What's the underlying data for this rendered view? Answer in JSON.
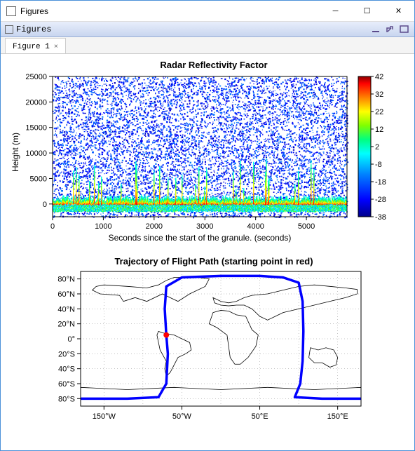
{
  "window": {
    "title": "Figures",
    "toolbar_label": "Figures"
  },
  "tabs": {
    "active": {
      "label": "Figure 1",
      "close": "×"
    }
  },
  "controls": {
    "min": "─",
    "max": "☐",
    "close": "✕"
  },
  "toolbar_icons": {
    "a": "minimize-panel-icon",
    "b": "dock-icon",
    "c": "maximize-panel-icon"
  },
  "chart1": {
    "title": "Radar Reflectivity Factor",
    "ylabel": "Height (m)",
    "xlabel": "Seconds since the start of the granule. (seconds)",
    "yticks": [
      0,
      5000,
      10000,
      15000,
      20000,
      25000
    ],
    "ytick_labels": [
      "0",
      "5000",
      "10000",
      "15000",
      "20000",
      "25000"
    ],
    "xticks": [
      0,
      1000,
      2000,
      3000,
      4000,
      5000
    ],
    "xtick_labels": [
      "0",
      "1000",
      "2000",
      "3000",
      "4000",
      "5000"
    ],
    "xlim": [
      0,
      5800
    ],
    "ylim": [
      -2500,
      25000
    ],
    "colorbar": {
      "ticks": [
        -38,
        -28,
        -18,
        -8,
        2,
        12,
        22,
        32,
        42
      ],
      "tick_labels": [
        "-38",
        "-28",
        "-18",
        "-8",
        "2",
        "12",
        "22",
        "32",
        "42"
      ],
      "stops": [
        {
          "p": 0.0,
          "c": "#00008b"
        },
        {
          "p": 0.12,
          "c": "#0000ff"
        },
        {
          "p": 0.3,
          "c": "#0080ff"
        },
        {
          "p": 0.45,
          "c": "#00ffff"
        },
        {
          "p": 0.55,
          "c": "#00ff80"
        },
        {
          "p": 0.65,
          "c": "#80ff00"
        },
        {
          "p": 0.75,
          "c": "#ffff00"
        },
        {
          "p": 0.85,
          "c": "#ff8000"
        },
        {
          "p": 0.95,
          "c": "#ff0000"
        },
        {
          "p": 1.0,
          "c": "#8b0000"
        }
      ]
    },
    "noise_seed": 42,
    "noise_density": 0.65,
    "signal_band_y": 0,
    "signal_band_half": 2000
  },
  "chart2": {
    "title": "Trajectory of Flight Path (starting point in red)",
    "yticks": [
      -80,
      -60,
      -40,
      -20,
      0,
      20,
      40,
      60,
      80
    ],
    "ytick_labels": [
      "80°S",
      "60°S",
      "40°S",
      "20°S",
      "0°",
      "20°N",
      "40°N",
      "60°N",
      "80°N"
    ],
    "xticks": [
      -150,
      -50,
      50,
      150
    ],
    "xtick_labels": [
      "150°W",
      "50°W",
      "50°E",
      "150°E"
    ],
    "xlim": [
      -180,
      180
    ],
    "ylim": [
      -90,
      90
    ],
    "box_color": "#000000",
    "coast_color": "#000000",
    "trajectory_color": "#0000ff",
    "trajectory_width": 3.5,
    "start_point": {
      "lon": -70,
      "lat": 5,
      "color": "#ff0000",
      "r": 4
    },
    "trajectory_path": [
      [
        -180,
        -80
      ],
      [
        -120,
        -80
      ],
      [
        -80,
        -78
      ],
      [
        -70,
        -60
      ],
      [
        -68,
        -20
      ],
      [
        -70,
        5
      ],
      [
        -72,
        40
      ],
      [
        -70,
        70
      ],
      [
        -50,
        82
      ],
      [
        0,
        84
      ],
      [
        50,
        84
      ],
      [
        80,
        82
      ],
      [
        100,
        75
      ],
      [
        105,
        50
      ],
      [
        106,
        10
      ],
      [
        105,
        -30
      ],
      [
        102,
        -60
      ],
      [
        95,
        -78
      ],
      [
        130,
        -80
      ],
      [
        180,
        -80
      ]
    ],
    "continents": [
      [
        [
          -160,
          70
        ],
        [
          -150,
          72
        ],
        [
          -120,
          70
        ],
        [
          -95,
          68
        ],
        [
          -80,
          72
        ],
        [
          -70,
          78
        ],
        [
          -60,
          82
        ],
        [
          -30,
          82
        ],
        [
          -15,
          80
        ],
        [
          -20,
          70
        ],
        [
          -40,
          60
        ],
        [
          -55,
          50
        ],
        [
          -65,
          55
        ],
        [
          -75,
          60
        ],
        [
          -95,
          50
        ],
        [
          -110,
          55
        ],
        [
          -125,
          50
        ],
        [
          -130,
          58
        ],
        [
          -155,
          60
        ],
        [
          -165,
          65
        ],
        [
          -160,
          70
        ]
      ],
      [
        [
          -80,
          10
        ],
        [
          -75,
          8
        ],
        [
          -60,
          5
        ],
        [
          -50,
          0
        ],
        [
          -40,
          -5
        ],
        [
          -38,
          -15
        ],
        [
          -45,
          -20
        ],
        [
          -55,
          -25
        ],
        [
          -60,
          -35
        ],
        [
          -65,
          -45
        ],
        [
          -70,
          -50
        ],
        [
          -72,
          -40
        ],
        [
          -70,
          -30
        ],
        [
          -78,
          -15
        ],
        [
          -80,
          -5
        ],
        [
          -82,
          5
        ],
        [
          -80,
          10
        ]
      ],
      [
        [
          -10,
          35
        ],
        [
          0,
          38
        ],
        [
          10,
          37
        ],
        [
          20,
          32
        ],
        [
          32,
          30
        ],
        [
          40,
          12
        ],
        [
          48,
          5
        ],
        [
          45,
          -10
        ],
        [
          35,
          -25
        ],
        [
          25,
          -34
        ],
        [
          18,
          -34
        ],
        [
          12,
          -25
        ],
        [
          10,
          -10
        ],
        [
          8,
          5
        ],
        [
          -5,
          15
        ],
        [
          -15,
          20
        ],
        [
          -10,
          35
        ]
      ],
      [
        [
          -10,
          55
        ],
        [
          0,
          50
        ],
        [
          10,
          48
        ],
        [
          20,
          50
        ],
        [
          30,
          55
        ],
        [
          40,
          58
        ],
        [
          60,
          60
        ],
        [
          80,
          65
        ],
        [
          100,
          70
        ],
        [
          120,
          72
        ],
        [
          140,
          70
        ],
        [
          160,
          68
        ],
        [
          175,
          66
        ],
        [
          175,
          60
        ],
        [
          160,
          55
        ],
        [
          140,
          50
        ],
        [
          120,
          45
        ],
        [
          100,
          40
        ],
        [
          80,
          35
        ],
        [
          70,
          30
        ],
        [
          60,
          25
        ],
        [
          50,
          30
        ],
        [
          40,
          40
        ],
        [
          30,
          45
        ],
        [
          20,
          45
        ],
        [
          10,
          44
        ],
        [
          0,
          45
        ],
        [
          -8,
          48
        ],
        [
          -10,
          55
        ]
      ],
      [
        [
          115,
          -12
        ],
        [
          125,
          -15
        ],
        [
          135,
          -12
        ],
        [
          145,
          -15
        ],
        [
          150,
          -25
        ],
        [
          148,
          -35
        ],
        [
          140,
          -38
        ],
        [
          130,
          -32
        ],
        [
          120,
          -32
        ],
        [
          113,
          -25
        ],
        [
          115,
          -12
        ]
      ],
      [
        [
          -180,
          -65
        ],
        [
          -120,
          -68
        ],
        [
          -60,
          -65
        ],
        [
          0,
          -68
        ],
        [
          60,
          -65
        ],
        [
          120,
          -68
        ],
        [
          180,
          -65
        ],
        [
          180,
          -90
        ],
        [
          -180,
          -90
        ],
        [
          -180,
          -65
        ]
      ]
    ]
  },
  "colors": {
    "window_border": "#4a90d9",
    "bg": "#ffffff"
  }
}
